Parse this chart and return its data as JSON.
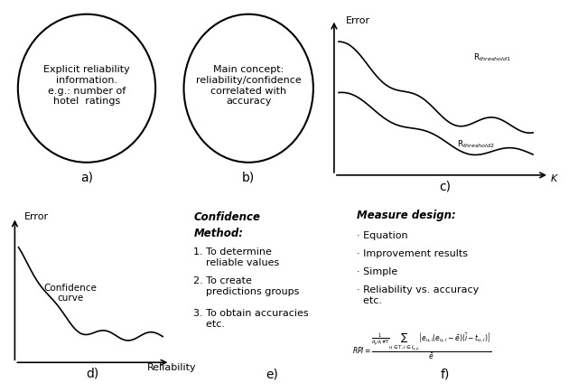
{
  "bg_color": "#ffffff",
  "panel_a_text": "Explicit reliability\ninformation.\ne.g.: number of\nhotel  ratings",
  "panel_b_text": "Main concept:\nreliability/confidence\ncorrelated with\naccuracy",
  "panel_c_xlabel": "K",
  "panel_c_ylabel": "Error",
  "panel_c_curve1_label": "Rₜʰʳʳʰˢʰ˳˳1",
  "panel_c_curve2_label": "Rₜʰʳʳʰˢʰ˳˳2",
  "panel_d_xlabel": "Reliability",
  "panel_d_ylabel": "Error",
  "panel_d_curve_label": "Confidence\ncurve",
  "panel_e_text_title": "Confidence\nMethod:",
  "panel_e_items": [
    "1. To determine\n    reliable values",
    "2. To create\n    predictions groups",
    "3. To obtain accuracies\n    etc."
  ],
  "panel_f_title": "Measure design:",
  "panel_f_items": [
    "· Equation",
    "· Improvement results",
    "· Simple",
    "· Reliability vs. accuracy\n  etc."
  ],
  "label_a": "a)",
  "label_b": "b)",
  "label_c": "c)",
  "label_d": "d)",
  "label_e": "e)",
  "label_f": "f)"
}
